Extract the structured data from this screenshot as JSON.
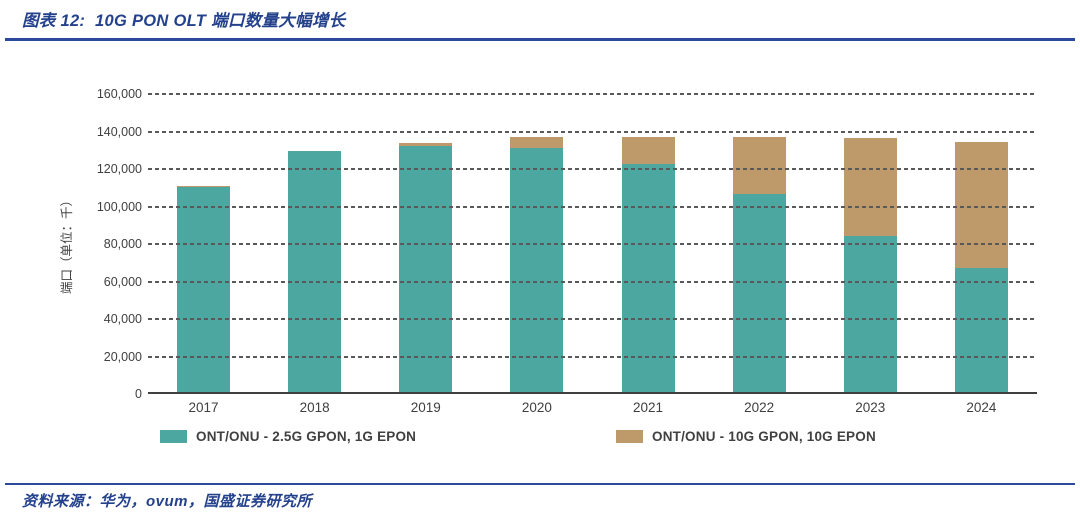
{
  "page": {
    "title": "图表 12:  10G PON OLT 端口数量大幅增长",
    "source_note": "资料来源：华为，ovum，国盛证券研究所"
  },
  "colors": {
    "accent_navy": "#24418C",
    "rule_blue": "#2B4A9C",
    "grid_gray": "#595959",
    "axis_gray": "#404040",
    "tick_text_gray": "#3F3F3F",
    "series_teal": "#4BA79F",
    "series_tan": "#BE9A6B"
  },
  "chart_data": {
    "type": "bar",
    "stacked": true,
    "categories": [
      "2017",
      "2018",
      "2019",
      "2020",
      "2021",
      "2022",
      "2023",
      "2024"
    ],
    "series": [
      {
        "name": "ONT/ONU - 2.5G GPON, 1G EPON",
        "color": "#4BA79F",
        "values": [
          109200,
          128300,
          131000,
          130200,
          121700,
          105800,
          83200,
          66100
        ]
      },
      {
        "name": "ONT/ONU - 10G GPON, 10G EPON",
        "color": "#BE9A6B",
        "values": [
          500,
          500,
          1800,
          5600,
          14300,
          30200,
          52300,
          67200
        ]
      }
    ],
    "totals": [
      109700,
      128800,
      132800,
      135800,
      136000,
      136000,
      135500,
      133300
    ],
    "ylabel": "端口（单位：千）",
    "ylim": [
      0,
      160000
    ],
    "ytick_step": 20000,
    "grid": "dashed horizontal gridlines",
    "legend_position": "bottom"
  }
}
